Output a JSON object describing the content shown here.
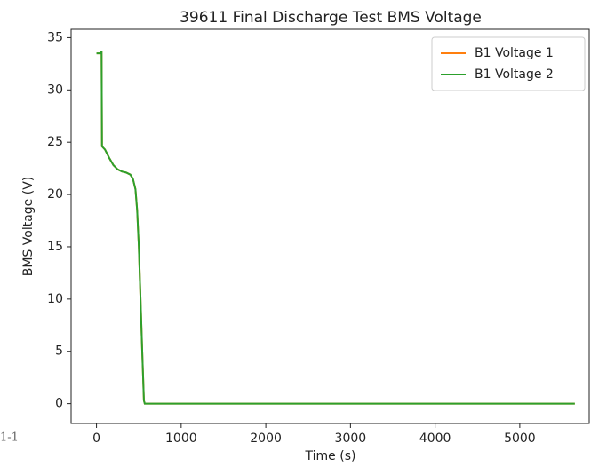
{
  "chart_data": {
    "type": "line",
    "title": "39611 Final Discharge Test BMS Voltage",
    "xlabel": "Time (s)",
    "ylabel": "BMS Voltage (V)",
    "annotation": "1-1",
    "x": [
      0,
      50,
      60,
      65,
      100,
      150,
      200,
      250,
      300,
      350,
      400,
      430,
      460,
      480,
      500,
      520,
      540,
      560,
      570,
      5650
    ],
    "series": [
      {
        "name": "B1 Voltage 1",
        "color": "#ff7f0e",
        "values": [
          33.5,
          33.5,
          33.7,
          24.6,
          24.3,
          23.5,
          22.8,
          22.4,
          22.2,
          22.1,
          21.9,
          21.5,
          20.5,
          18.5,
          15,
          10,
          5,
          0.3,
          0,
          0
        ]
      },
      {
        "name": "B1 Voltage 2",
        "color": "#2ca02c",
        "values": [
          33.5,
          33.5,
          33.7,
          24.6,
          24.3,
          23.5,
          22.8,
          22.4,
          22.2,
          22.1,
          21.9,
          21.5,
          20.5,
          18.5,
          15,
          10,
          5,
          0.3,
          0,
          0
        ]
      }
    ],
    "xlim": [
      -300,
      5820
    ],
    "ylim": [
      -1.9,
      35.8
    ],
    "xticks": [
      0,
      1000,
      2000,
      3000,
      4000,
      5000
    ],
    "yticks": [
      0,
      5,
      10,
      15,
      20,
      25,
      30,
      35
    ],
    "legend": "upper right",
    "grid": false
  }
}
